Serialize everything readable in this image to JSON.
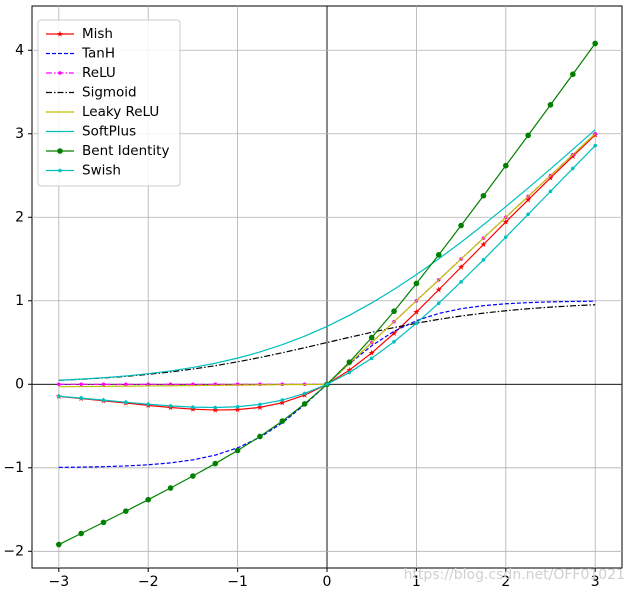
{
  "chart_data": {
    "type": "line",
    "x": [
      -3,
      -2.75,
      -2.5,
      -2.25,
      -2,
      -1.75,
      -1.5,
      -1.25,
      -1,
      -0.75,
      -0.5,
      -0.25,
      0,
      0.25,
      0.5,
      0.75,
      1,
      1.25,
      1.5,
      1.75,
      2,
      2.25,
      2.5,
      2.75,
      3
    ],
    "series": [
      {
        "name": "Mish",
        "color": "#ff0000",
        "dash": "solid",
        "marker": "star",
        "values": [
          -0.1456,
          -0.1703,
          -0.1968,
          -0.2247,
          -0.2525,
          -0.2779,
          -0.2981,
          -0.3084,
          -0.3034,
          -0.2764,
          -0.2208,
          -0.1299,
          0,
          0.1695,
          0.3753,
          0.61,
          0.8651,
          1.1321,
          1.4031,
          1.6741,
          1.9439,
          2.2095,
          2.4715,
          2.7302,
          2.9865
        ]
      },
      {
        "name": "TanH",
        "color": "#0000ff",
        "dash": "dashed",
        "marker": "none",
        "values": [
          -0.9951,
          -0.9919,
          -0.9866,
          -0.978,
          -0.964,
          -0.9414,
          -0.9051,
          -0.8483,
          -0.7616,
          -0.6351,
          -0.4621,
          -0.2449,
          0,
          0.2449,
          0.4621,
          0.6351,
          0.7616,
          0.8483,
          0.9051,
          0.9414,
          0.964,
          0.978,
          0.9866,
          0.9919,
          0.9951
        ]
      },
      {
        "name": "ReLU",
        "color": "#ff00ff",
        "dash": "dashdot",
        "marker": "point",
        "values": [
          0,
          0,
          0,
          0,
          0,
          0,
          0,
          0,
          0,
          0,
          0,
          0,
          0,
          0.25,
          0.5,
          0.75,
          1,
          1.25,
          1.5,
          1.75,
          2,
          2.25,
          2.5,
          2.75,
          3
        ]
      },
      {
        "name": "Sigmoid",
        "color": "#000000",
        "dash": "dashdot",
        "marker": "none",
        "values": [
          0.0474,
          0.0601,
          0.0759,
          0.0953,
          0.1192,
          0.148,
          0.1824,
          0.2227,
          0.2689,
          0.3208,
          0.3775,
          0.4378,
          0.5,
          0.5622,
          0.6225,
          0.6792,
          0.7311,
          0.7773,
          0.8176,
          0.852,
          0.8808,
          0.9047,
          0.9241,
          0.9399,
          0.9526
        ]
      },
      {
        "name": "Leaky ReLU",
        "color": "#bfbf00",
        "dash": "solid",
        "marker": "none",
        "values": [
          -0.03,
          -0.0275,
          -0.025,
          -0.0225,
          -0.02,
          -0.0175,
          -0.015,
          -0.0125,
          -0.01,
          -0.0075,
          -0.005,
          -0.0025,
          0,
          0.25,
          0.5,
          0.75,
          1,
          1.25,
          1.5,
          1.75,
          2,
          2.25,
          2.5,
          2.75,
          3
        ]
      },
      {
        "name": "SoftPlus",
        "color": "#00bfbf",
        "dash": "solid",
        "marker": "none",
        "values": [
          0.0486,
          0.062,
          0.0789,
          0.1002,
          0.1269,
          0.1602,
          0.2014,
          0.2519,
          0.3133,
          0.3869,
          0.4741,
          0.5759,
          0.6931,
          0.8259,
          0.9741,
          1.1369,
          1.3133,
          1.5019,
          1.7014,
          1.9102,
          2.1269,
          2.3502,
          2.5789,
          2.812,
          3.0486
        ]
      },
      {
        "name": "Bent Identity",
        "color": "#008000",
        "dash": "solid",
        "marker": "circle",
        "values": [
          -1.9189,
          -1.7869,
          -1.6537,
          -1.5189,
          -1.382,
          -1.2422,
          -1.0986,
          -0.9496,
          -0.7929,
          -0.625,
          -0.441,
          -0.2346,
          0,
          0.2654,
          0.559,
          0.875,
          1.2071,
          1.5504,
          1.9014,
          2.2578,
          2.618,
          2.9811,
          3.3463,
          3.7131,
          4.0811
        ]
      },
      {
        "name": "Swish",
        "color": "#00bfbf",
        "dash": "solid",
        "marker": "point",
        "values": [
          -0.1423,
          -0.1653,
          -0.1898,
          -0.2144,
          -0.2384,
          -0.259,
          -0.2736,
          -0.2784,
          -0.2689,
          -0.2406,
          -0.1888,
          -0.1095,
          0,
          0.1405,
          0.3112,
          0.5094,
          0.7311,
          0.9716,
          1.2264,
          1.491,
          1.7616,
          2.0356,
          2.3103,
          2.5847,
          2.8577
        ]
      }
    ],
    "xlim": [
      -3.3,
      3.3
    ],
    "ylim": [
      -2.2,
      4.53
    ],
    "xticks": [
      {
        "value": -3,
        "label": "−3"
      },
      {
        "value": -2,
        "label": "−2"
      },
      {
        "value": -1,
        "label": "−1"
      },
      0,
      1,
      2,
      3
    ],
    "yticks": [
      {
        "value": -2,
        "label": "−2"
      },
      {
        "value": -1,
        "label": "−1"
      },
      0,
      1,
      2,
      3,
      4
    ],
    "grid": true,
    "legend": "upper-left",
    "watermark": "https://blog.csdn.net/OFF01021"
  }
}
